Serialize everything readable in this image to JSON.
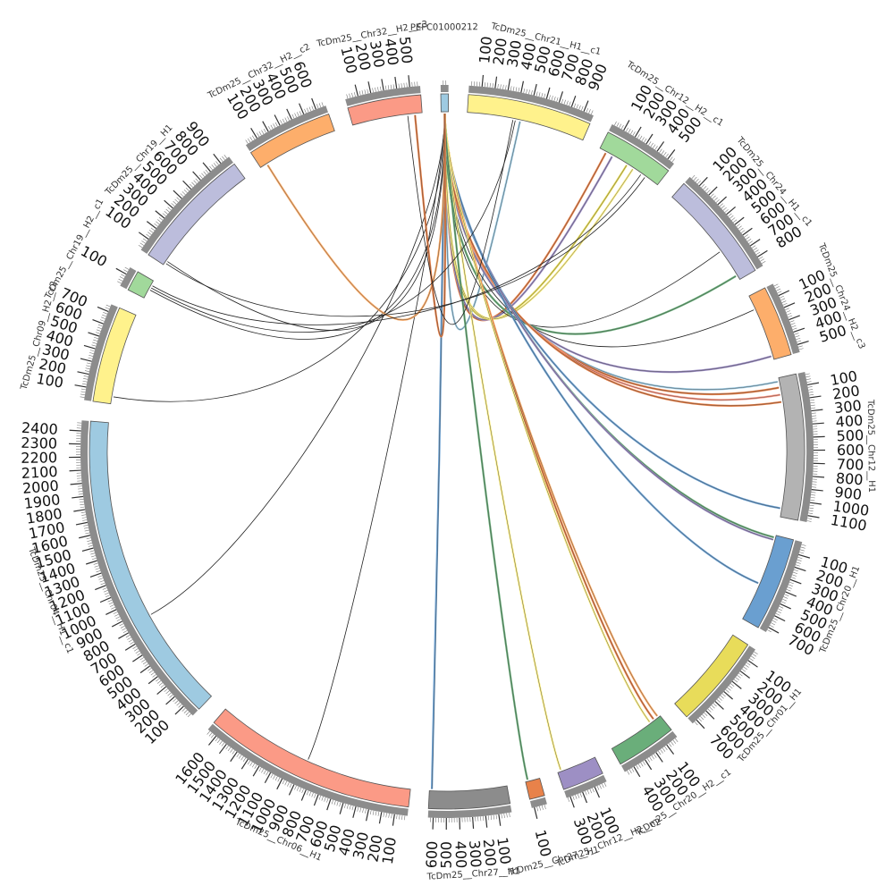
{
  "diagram_data": {
    "type": "circos",
    "segments": [
      {
        "name": "PEFC01000212",
        "color": "#9ecae1",
        "max": 60
      },
      {
        "name": "TcDm25__Chr21__H1__c1",
        "color": "#fff28c",
        "max": 980
      },
      {
        "name": "TcDm25__Chr12__H2__c1",
        "color": "#a1d99b",
        "max": 560
      },
      {
        "name": "TcDm25__Chr24__H1__c1",
        "color": "#bcbddc",
        "max": 880
      },
      {
        "name": "TcDm25__Chr24__H2__c3",
        "color": "#fdae6b",
        "max": 560
      },
      {
        "name": "TcDm25__Chr12__H1",
        "color": "#b3b3b3",
        "max": 1150
      },
      {
        "name": "TcDm25__Chr20__H1",
        "color": "#6a9fd0",
        "max": 740
      },
      {
        "name": "TcDm25__Chr01__H1",
        "color": "#e8dc5a",
        "max": 740
      },
      {
        "name": "TcDm25__Chr20__H2__c1",
        "color": "#6aae7a",
        "max": 480
      },
      {
        "name": "TcDm25__Chr12__H2__c2",
        "color": "#9d8fc4",
        "max": 330
      },
      {
        "name": "TcDm25__Chr27__H1",
        "color": "#e8824a",
        "max": 120
      },
      {
        "name": "TcDm25__Chr27__H1",
        "color": "#8c8c8c",
        "max": 640
      },
      {
        "name": "TcDm25__Chr06__H1",
        "color": "#fb9a86",
        "max": 1680
      },
      {
        "name": "TcDm25__Chr04__H1__c1",
        "color": "#9ecae1",
        "max": 2480
      },
      {
        "name": "TcDm25__Chr09__H2__c2",
        "color": "#fff28c",
        "max": 760
      },
      {
        "name": "TcDm25__Chr19__H2__c1",
        "color": "#a1d99b",
        "max": 160
      },
      {
        "name": "TcDm25__Chr19__H1",
        "color": "#bcbddc",
        "max": 980
      },
      {
        "name": "TcDm25__Chr32__H2__c2",
        "color": "#fdae6b",
        "max": 680
      },
      {
        "name": "TcDm25__Chr32__H2__c3",
        "color": "#fb9a86",
        "max": 580
      }
    ],
    "links": [
      {
        "from_seg": 0,
        "from_pos": 30,
        "to_seg": 1,
        "to_pos": 440,
        "color": "#9ecae1"
      },
      {
        "from_seg": 0,
        "from_pos": 30,
        "to_seg": 2,
        "to_pos": 60,
        "color": "#e8824a"
      },
      {
        "from_seg": 0,
        "from_pos": 30,
        "to_seg": 2,
        "to_pos": 120,
        "color": "#9d8fc4"
      },
      {
        "from_seg": 0,
        "from_pos": 30,
        "to_seg": 2,
        "to_pos": 260,
        "color": "#e8dc5a"
      },
      {
        "from_seg": 0,
        "from_pos": 30,
        "to_seg": 2,
        "to_pos": 320,
        "color": "#fff28c"
      },
      {
        "from_seg": 0,
        "from_pos": 30,
        "to_seg": 3,
        "to_pos": 600,
        "color": "#222222"
      },
      {
        "from_seg": 0,
        "from_pos": 30,
        "to_seg": 3,
        "to_pos": 840,
        "color": "#6aae7a"
      },
      {
        "from_seg": 0,
        "from_pos": 30,
        "to_seg": 4,
        "to_pos": 120,
        "color": "#222222"
      },
      {
        "from_seg": 0,
        "from_pos": 30,
        "to_seg": 4,
        "to_pos": 530,
        "color": "#9d8fc4"
      },
      {
        "from_seg": 0,
        "from_pos": 30,
        "to_seg": 5,
        "to_pos": 30,
        "color": "#9ecae1"
      },
      {
        "from_seg": 0,
        "from_pos": 30,
        "to_seg": 5,
        "to_pos": 80,
        "color": "#e8824a"
      },
      {
        "from_seg": 0,
        "from_pos": 30,
        "to_seg": 5,
        "to_pos": 140,
        "color": "#fb9a86"
      },
      {
        "from_seg": 0,
        "from_pos": 30,
        "to_seg": 5,
        "to_pos": 200,
        "color": "#e8824a"
      },
      {
        "from_seg": 0,
        "from_pos": 30,
        "to_seg": 5,
        "to_pos": 1080,
        "color": "#6a9fd0"
      },
      {
        "from_seg": 0,
        "from_pos": 30,
        "to_seg": 6,
        "to_pos": 20,
        "color": "#6aae7a"
      },
      {
        "from_seg": 0,
        "from_pos": 30,
        "to_seg": 6,
        "to_pos": 40,
        "color": "#9d8fc4"
      },
      {
        "from_seg": 0,
        "from_pos": 30,
        "to_seg": 6,
        "to_pos": 420,
        "color": "#6a9fd0"
      },
      {
        "from_seg": 0,
        "from_pos": 30,
        "to_seg": 8,
        "to_pos": 20,
        "color": "#fdae6b"
      },
      {
        "from_seg": 0,
        "from_pos": 30,
        "to_seg": 8,
        "to_pos": 60,
        "color": "#e8824a"
      },
      {
        "from_seg": 0,
        "from_pos": 30,
        "to_seg": 8,
        "to_pos": 100,
        "color": "#fff28c"
      },
      {
        "from_seg": 0,
        "from_pos": 30,
        "to_seg": 9,
        "to_pos": 300,
        "color": "#fff28c"
      },
      {
        "from_seg": 0,
        "from_pos": 30,
        "to_seg": 10,
        "to_pos": 100,
        "color": "#6aae7a"
      },
      {
        "from_seg": 0,
        "from_pos": 30,
        "to_seg": 11,
        "to_pos": 620,
        "color": "#6a9fd0"
      },
      {
        "from_seg": 0,
        "from_pos": 30,
        "to_seg": 12,
        "to_pos": 880,
        "color": "#222222"
      },
      {
        "from_seg": 0,
        "from_pos": 30,
        "to_seg": 13,
        "to_pos": 840,
        "color": "#222222"
      },
      {
        "from_seg": 0,
        "from_pos": 30,
        "to_seg": 14,
        "to_pos": 60,
        "color": "#222222"
      },
      {
        "from_seg": 0,
        "from_pos": 30,
        "to_seg": 15,
        "to_pos": 80,
        "color": "#222222"
      },
      {
        "from_seg": 0,
        "from_pos": 30,
        "to_seg": 16,
        "to_pos": 40,
        "color": "#222222"
      },
      {
        "from_seg": 0,
        "from_pos": 30,
        "to_seg": 17,
        "to_pos": 60,
        "color": "#fdae6b"
      },
      {
        "from_seg": 0,
        "from_pos": 30,
        "to_seg": 18,
        "to_pos": 520,
        "color": "#e8824a"
      },
      {
        "from_seg": 18,
        "from_pos": 460,
        "to_seg": 1,
        "to_pos": 380,
        "color": "#222222"
      },
      {
        "from_seg": 15,
        "from_pos": 100,
        "to_seg": 1,
        "to_pos": 400,
        "color": "#222222"
      },
      {
        "from_seg": 15,
        "from_pos": 120,
        "to_seg": 2,
        "to_pos": 400,
        "color": "#222222"
      },
      {
        "from_seg": 16,
        "from_pos": 20,
        "to_seg": 2,
        "to_pos": 440,
        "color": "#222222"
      }
    ]
  }
}
